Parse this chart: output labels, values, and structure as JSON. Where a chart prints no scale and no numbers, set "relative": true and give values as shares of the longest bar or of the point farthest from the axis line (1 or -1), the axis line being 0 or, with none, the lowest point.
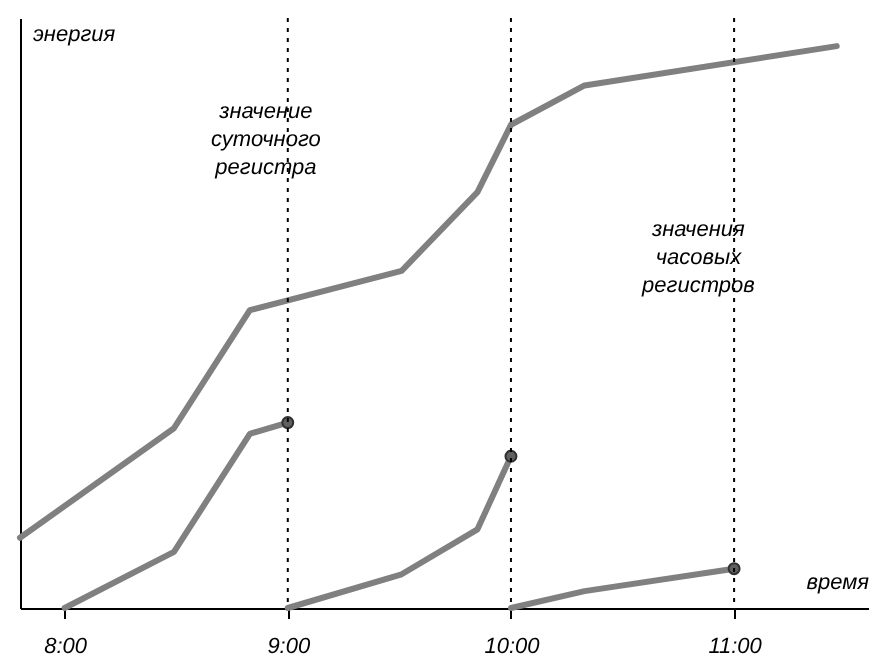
{
  "chart_data": {
    "type": "line",
    "relative": true,
    "xlabel": "время",
    "ylabel": "энергия",
    "xlim": [
      7.8,
      11.6
    ],
    "xticks": [
      {
        "value": 8,
        "label": "8:00"
      },
      {
        "value": 9,
        "label": "9:00"
      },
      {
        "value": 10,
        "label": "10:00"
      },
      {
        "value": 11,
        "label": "11:00"
      }
    ],
    "series": [
      {
        "color": "#808080",
        "x": [
          7.8,
          8.49,
          8.83,
          9.51,
          9.85,
          10.0,
          10.33,
          11.46
        ],
        "values": [
          0.125,
          0.32,
          0.53,
          0.6,
          0.74,
          0.86,
          0.93,
          1.0
        ]
      },
      {
        "color": "#808080",
        "x": [
          8.0,
          8.49,
          8.83,
          9.0
        ],
        "values": [
          0,
          0.1,
          0.31,
          0.33
        ]
      },
      {
        "color": "#808080",
        "x": [
          9.0,
          9.51,
          9.85,
          10.0
        ],
        "values": [
          0,
          0.06,
          0.14,
          0.27
        ]
      },
      {
        "color": "#808080",
        "x": [
          10.0,
          10.33,
          11.0
        ],
        "values": [
          0,
          0.03,
          0.07
        ]
      },
      {
        "type": "scatter",
        "color": "#606060",
        "x": [
          9.0,
          10.0,
          11.0
        ],
        "values": [
          0.33,
          0.27,
          0.07
        ]
      }
    ],
    "ref_lines": [
      {
        "axis": "x",
        "value": 9,
        "line_style": "dotted",
        "color": "#000000"
      },
      {
        "axis": "x",
        "value": 10,
        "line_style": "dotted",
        "color": "#000000"
      },
      {
        "axis": "x",
        "value": 11,
        "line_style": "dotted",
        "color": "#000000"
      }
    ],
    "annotations": [
      "значение суточного регистра",
      "значения часовых регистров"
    ],
    "grid": false,
    "line_style": "solid"
  }
}
